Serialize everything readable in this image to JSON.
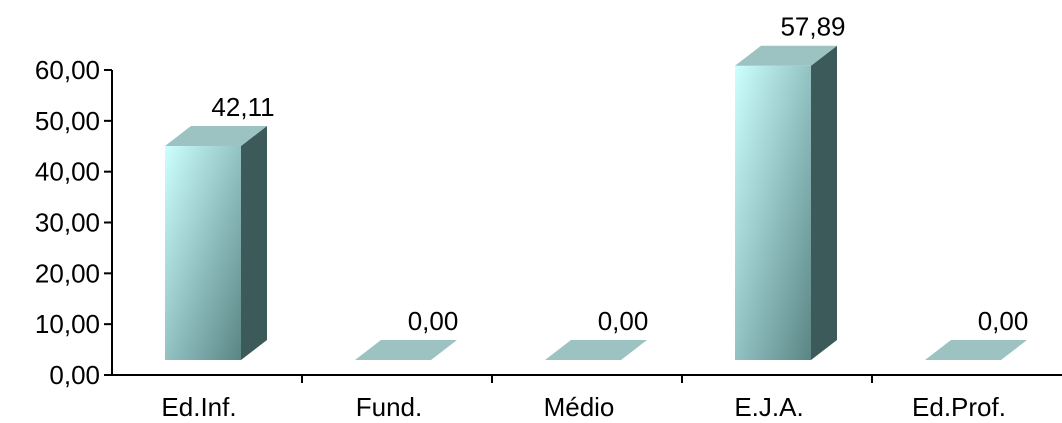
{
  "chart_data": {
    "type": "bar",
    "categories": [
      "Ed.Inf.",
      "Fund.",
      "Médio",
      "E.J.A.",
      "Ed.Prof."
    ],
    "values": [
      42.11,
      0.0,
      0.0,
      57.89,
      0.0
    ],
    "data_labels": [
      "42,11",
      "0,00",
      "0,00",
      "57,89",
      "0,00"
    ],
    "yticks": [
      "0,00",
      "10,00",
      "20,00",
      "30,00",
      "40,00",
      "50,00",
      "60,00"
    ],
    "ylim": [
      0,
      60
    ],
    "title": "",
    "xlabel": "",
    "ylabel": "",
    "grid": false,
    "legend": "none",
    "colors": {
      "bar_front_light": "#ccffff",
      "bar_front_dark": "#5a8585",
      "bar_side": "#3d5a5a",
      "bar_top": "#9cc2c2",
      "axis": "#000000"
    }
  }
}
